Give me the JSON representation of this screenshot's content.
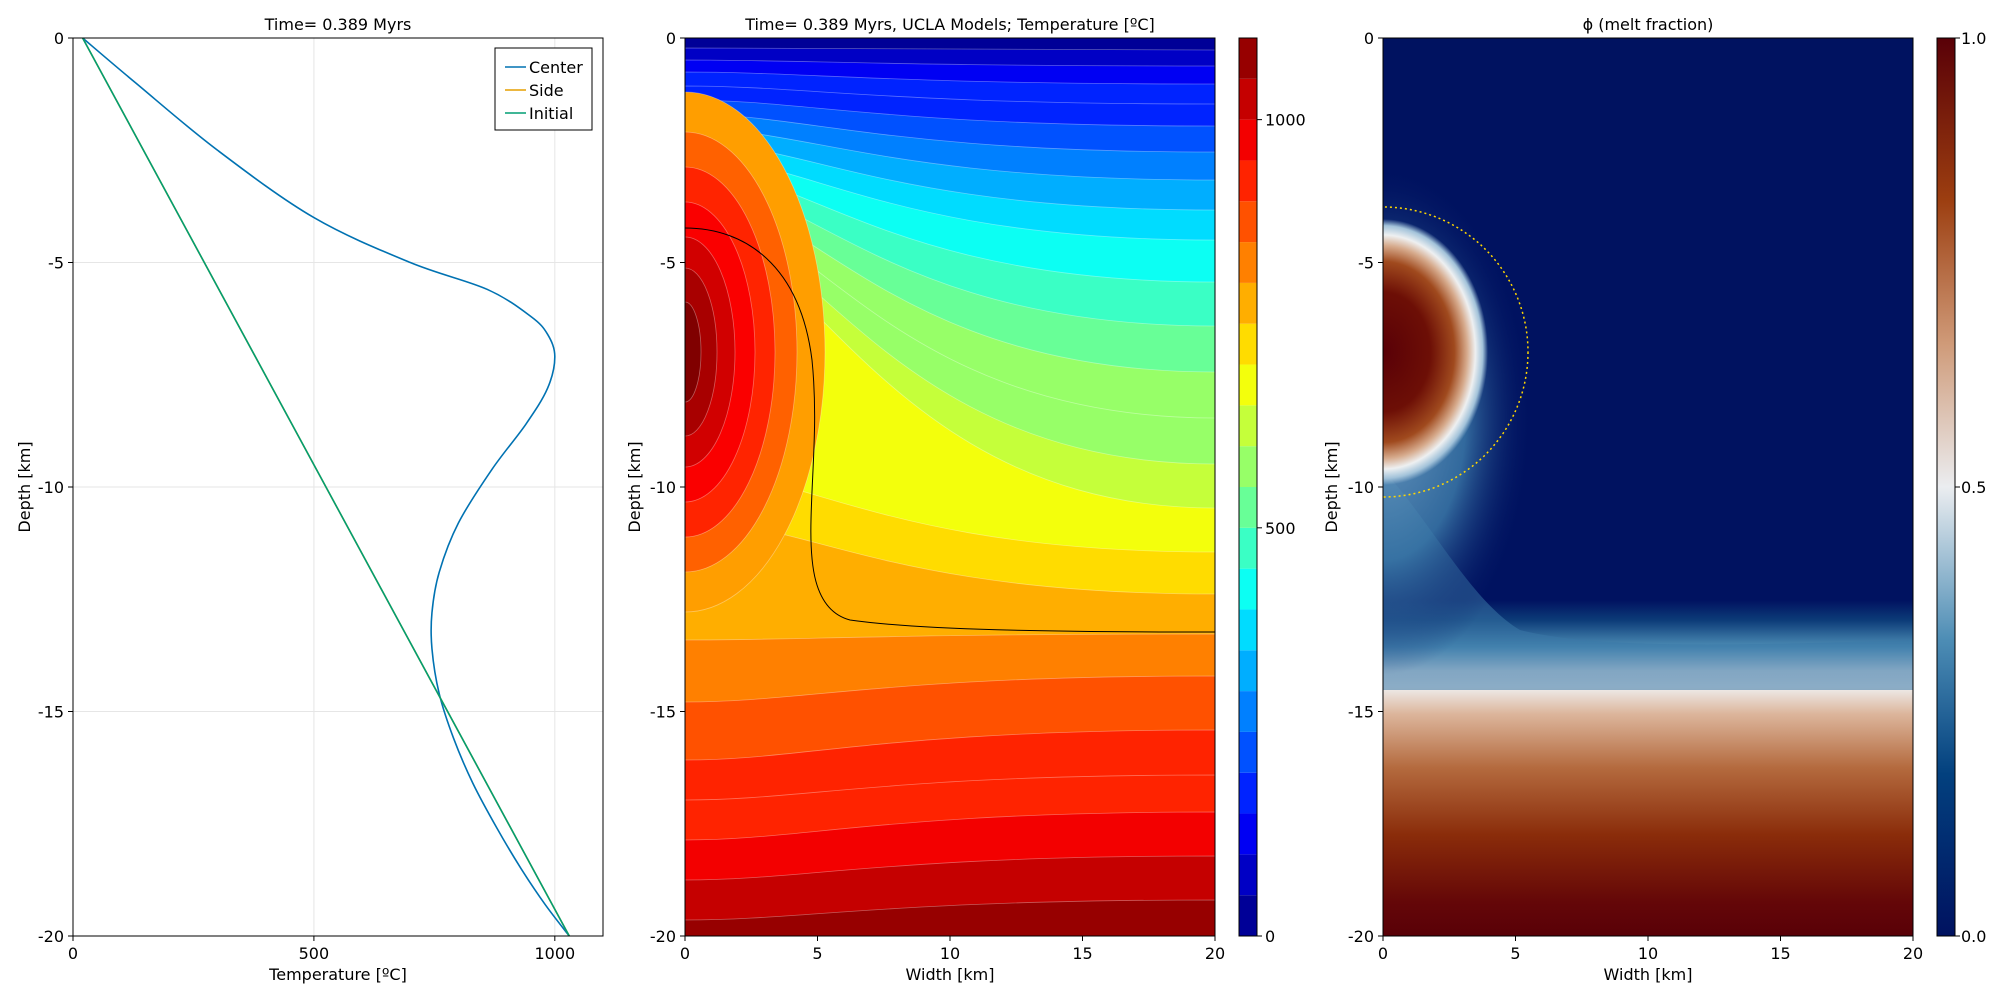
{
  "chart_data": [
    {
      "type": "line",
      "title": "Time= 0.389 Myrs",
      "xlabel": "Temperature [ºC]",
      "ylabel": "Depth [km]",
      "xlim": [
        0,
        1100
      ],
      "ylim": [
        -20,
        0
      ],
      "xticks": [
        0,
        500,
        1000
      ],
      "yticks": [
        0,
        -5,
        -10,
        -15,
        -20
      ],
      "grid": true,
      "legend_position": "top-right",
      "series": [
        {
          "name": "Center",
          "color": "#0072b2",
          "x": [
            20,
            130,
            300,
            500,
            700,
            860,
            950,
            985,
            1000,
            985,
            940,
            870,
            800,
            760,
            745,
            745,
            760,
            790,
            830,
            880,
            930,
            980,
            1030
          ],
          "y": [
            0,
            -1,
            -2.5,
            -4,
            -5,
            -5.6,
            -6.2,
            -6.6,
            -7.1,
            -7.8,
            -8.6,
            -9.6,
            -10.8,
            -11.9,
            -12.8,
            -13.6,
            -14.6,
            -15.6,
            -16.6,
            -17.6,
            -18.5,
            -19.3,
            -20
          ]
        },
        {
          "name": "Side",
          "color": "#e69f00",
          "x": [
            20,
            1030
          ],
          "y": [
            0,
            -20
          ]
        },
        {
          "name": "Initial",
          "color": "#009e73",
          "x": [
            20,
            1030
          ],
          "y": [
            0,
            -20
          ]
        }
      ]
    },
    {
      "type": "heatmap",
      "title": "Time= 0.389 Myrs, UCLA Models; Temperature [ºC]",
      "xlabel": "Width [km]",
      "ylabel": "Depth [km]",
      "xlim": [
        0,
        20
      ],
      "ylim": [
        -20,
        0
      ],
      "xticks": [
        0,
        5,
        10,
        15,
        20
      ],
      "yticks": [
        0,
        -5,
        -10,
        -15,
        -20
      ],
      "colormap": "jet",
      "colorbar_range": [
        0,
        1100
      ],
      "colorbar_ticks": [
        0,
        500,
        1000
      ],
      "contour_levels": [
        0,
        50,
        100,
        150,
        200,
        250,
        300,
        350,
        400,
        450,
        500,
        550,
        600,
        650,
        700,
        750,
        800,
        850,
        900,
        950,
        1000,
        1050,
        1100
      ]
    },
    {
      "type": "heatmap",
      "title": "ϕ (melt fraction)",
      "xlabel": "Width [km]",
      "ylabel": "Depth [km]",
      "xlim": [
        0,
        20
      ],
      "ylim": [
        -20,
        0
      ],
      "xticks": [
        0,
        5,
        10,
        15,
        20
      ],
      "yticks": [
        0,
        -5,
        -10,
        -15,
        -20
      ],
      "colormap": "vik",
      "colorbar_range": [
        0.0,
        1.0
      ],
      "colorbar_ticks": [
        0.0,
        0.5,
        1.0
      ]
    }
  ]
}
